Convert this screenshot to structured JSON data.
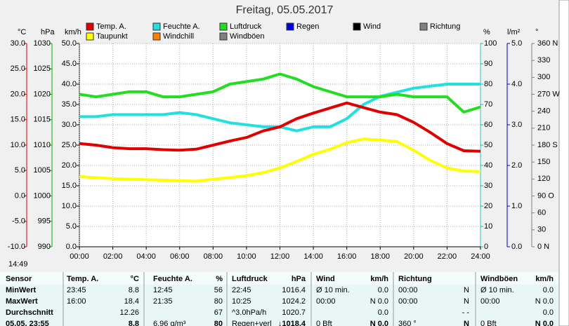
{
  "title": "Freitag, 05.05.2017",
  "time_label": "14:49",
  "chart_data": {
    "type": "line",
    "x": [
      0,
      1,
      2,
      3,
      4,
      5,
      6,
      7,
      8,
      9,
      10,
      11,
      12,
      13,
      14,
      15,
      16,
      17,
      18,
      19,
      20,
      21,
      22,
      23,
      24
    ],
    "xlim": [
      0,
      24
    ],
    "xticks": [
      {
        "value": 0,
        "label": "00:00"
      },
      {
        "value": 2,
        "label": "02:00"
      },
      {
        "value": 4,
        "label": "04:00"
      },
      {
        "value": 6,
        "label": "06:00"
      },
      {
        "value": 8,
        "label": "08:00"
      },
      {
        "value": 10,
        "label": "10:00"
      },
      {
        "value": 12,
        "label": "12:00"
      },
      {
        "value": 14,
        "label": "14:00"
      },
      {
        "value": 16,
        "label": "16:00"
      },
      {
        "value": 18,
        "label": "18:00"
      },
      {
        "value": 20,
        "label": "20:00"
      },
      {
        "value": 22,
        "label": "22:00"
      },
      {
        "value": 24,
        "label": "24:00"
      }
    ],
    "grid": true,
    "axes": [
      {
        "unit": "°C",
        "color": "#e00000",
        "lim": [
          -10,
          30
        ],
        "ticks": [
          {
            "value": 30,
            "label": "30.0"
          },
          {
            "value": 25,
            "label": "25.0"
          },
          {
            "value": 20,
            "label": "20.0"
          },
          {
            "value": 15,
            "label": "15.0"
          },
          {
            "value": 10,
            "label": "10.0"
          },
          {
            "value": 5,
            "label": "5.0"
          },
          {
            "value": 0,
            "label": "0.0"
          },
          {
            "value": -5,
            "label": "-5.0"
          },
          {
            "value": -10,
            "label": "-10.0"
          }
        ]
      },
      {
        "unit": "hPa",
        "color": "#00b000",
        "lim": [
          990,
          1030
        ],
        "ticks": [
          1030,
          1025,
          1020,
          1015,
          1010,
          1005,
          1000,
          995,
          990
        ]
      },
      {
        "unit": "km/h",
        "color": "#000000",
        "lim": [
          0,
          50
        ],
        "ticks": [
          {
            "value": 50,
            "label": "50.0"
          },
          {
            "value": 45,
            "label": "45.0"
          },
          {
            "value": 40,
            "label": "40.0"
          },
          {
            "value": 35,
            "label": "35.0"
          },
          {
            "value": 30,
            "label": "30.0"
          },
          {
            "value": 25,
            "label": "25.0"
          },
          {
            "value": 20,
            "label": "20.0"
          },
          {
            "value": 15,
            "label": "15.0"
          },
          {
            "value": 10,
            "label": "10.0"
          },
          {
            "value": 5,
            "label": "5.0"
          },
          {
            "value": 0,
            "label": "0.0"
          }
        ]
      },
      {
        "unit": "%",
        "color": "#00c8c8",
        "lim": [
          0,
          100
        ],
        "ticks": [
          100,
          90,
          80,
          70,
          60,
          50,
          40,
          30,
          20,
          10,
          0
        ]
      },
      {
        "unit": "l/m²",
        "color": "#0000c0",
        "lim": [
          0,
          5
        ],
        "ticks": [
          {
            "value": 5,
            "label": "5.0"
          },
          {
            "value": 4,
            "label": "4.0"
          },
          {
            "value": 3,
            "label": "3.0"
          },
          {
            "value": 2,
            "label": "2.0"
          },
          {
            "value": 1,
            "label": "1.0"
          },
          {
            "value": 0,
            "label": "0.0"
          }
        ]
      },
      {
        "unit": "°",
        "color": "#808080",
        "lim": [
          0,
          360
        ],
        "ticks": [
          {
            "value": 360,
            "label": "360 N"
          },
          330,
          300,
          {
            "value": 270,
            "label": "270 W"
          },
          240,
          210,
          {
            "value": 180,
            "label": "180 S"
          },
          150,
          120,
          {
            "value": 90,
            "label": "90 O"
          },
          60,
          30,
          {
            "value": 0,
            "label": "0 N"
          }
        ]
      }
    ],
    "series": [
      {
        "name": "Temp. A.",
        "color": "#e00000",
        "label_color": "#e00000",
        "axis": 0,
        "values": [
          10.3,
          10.0,
          9.5,
          9.3,
          9.3,
          9.1,
          9.0,
          9.2,
          10.0,
          10.8,
          11.5,
          12.8,
          13.6,
          15.2,
          16.3,
          17.3,
          18.3,
          17.4,
          16.5,
          16.0,
          14.5,
          12.5,
          10.3,
          8.9,
          8.8
        ]
      },
      {
        "name": "Feuchte A.",
        "color": "#22e0e0",
        "label_color": "#00c8c8",
        "axis": 3,
        "values": [
          64,
          64,
          65,
          65,
          65,
          65,
          66,
          65,
          63,
          61,
          60,
          59,
          59,
          57,
          59,
          59,
          63,
          70,
          74,
          76,
          78,
          79,
          80,
          80,
          80
        ]
      },
      {
        "name": "Luftdruck",
        "color": "#22dd22",
        "label_color": "#00b000",
        "axis": 1,
        "values": [
          1020,
          1019.5,
          1020,
          1020.5,
          1020.5,
          1019.5,
          1019.5,
          1020,
          1020.5,
          1022,
          1022.5,
          1023,
          1024,
          1023,
          1021.5,
          1020.5,
          1019.5,
          1019.5,
          1019.5,
          1020,
          1019.5,
          1019.5,
          1019.5,
          1016.5,
          1017.5
        ]
      },
      {
        "name": "Regen",
        "color": "#0000e0",
        "label_color": "#0000e0"
      },
      {
        "name": "Wind",
        "color": "#000000",
        "label_color": "#000000"
      },
      {
        "name": "Richtung",
        "color": "#808080",
        "label_color": "#808080"
      },
      {
        "name": "Taupunkt",
        "color": "#ffff00",
        "label_color": "#e00000",
        "axis": 0,
        "values": [
          3.8,
          3.6,
          3.4,
          3.3,
          3.2,
          3.1,
          3.0,
          2.9,
          3.3,
          3.6,
          4.0,
          4.6,
          5.5,
          6.8,
          8.2,
          9.2,
          10.5,
          11.2,
          11.0,
          10.7,
          9.0,
          7.0,
          5.5,
          4.9,
          4.8
        ]
      },
      {
        "name": "Windchill",
        "color": "#ff8000",
        "label_color": "#e00000"
      },
      {
        "name": "Windböen",
        "color": "#808080",
        "label_color": "#000000"
      }
    ]
  },
  "table": {
    "header": [
      "Sensor",
      "Temp. A.",
      "°C",
      "Feuchte A.",
      "%",
      "Luftdruck",
      "hPa",
      "Wind",
      "km/h",
      "Richtung",
      null,
      "Windböen",
      "km/h"
    ],
    "rows": [
      [
        "MinWert",
        "23:45",
        "8.8",
        "12:45",
        "56",
        "22:45",
        "1016.4",
        "Ø 10 min.",
        "0.0",
        "00:00",
        "N",
        "Ø 10 min.",
        "0.0"
      ],
      [
        "MaxWert",
        "16:00",
        "18.4",
        "21:35",
        "80",
        "10:25",
        "1024.2",
        "00:00",
        "N 0.0",
        "00:00",
        "N",
        "00:00",
        "N 0.0"
      ],
      [
        "Durchschnitt",
        null,
        "12.26",
        null,
        "67",
        "^3.0hPa/h",
        "1020.7",
        null,
        "0.0",
        null,
        "- -",
        null,
        "0.0"
      ],
      [
        "05.05. 23:55",
        null,
        "8.8",
        "6.96 g/m³",
        "80",
        "Regen+verl",
        "↓1018.4",
        "0 Bft",
        "N 0.0",
        "360 °",
        "N",
        "0 Bft",
        "N 0.0"
      ]
    ]
  }
}
